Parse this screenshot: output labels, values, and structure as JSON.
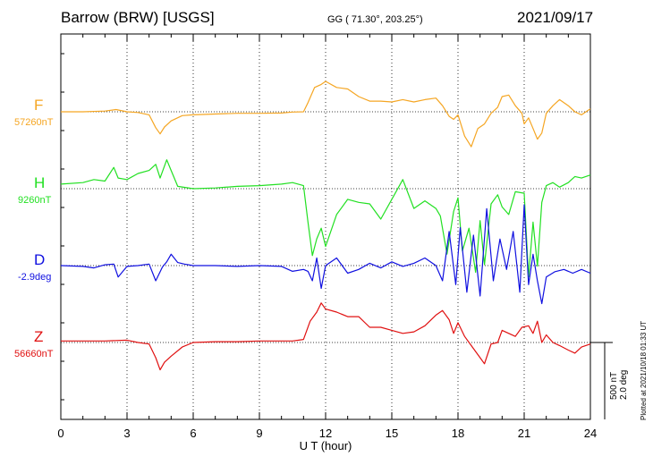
{
  "header": {
    "station": "Barrow (BRW)  [USGS]",
    "coords": "GG ( 71.30°, 203.25°)",
    "date": "2021/09/17"
  },
  "plotted_note": "Plotted at 2021/10/18 01:33 UT",
  "scale_note": {
    "nt": "500 nT",
    "deg": "2.0 deg"
  },
  "colors": {
    "F": "#f5a623",
    "H": "#22e022",
    "D": "#1010e0",
    "Z": "#e01010"
  },
  "chart_data": {
    "type": "line",
    "title": "Barrow (BRW)  [USGS]",
    "xlabel": "U T (hour)",
    "xlim": [
      0,
      24
    ],
    "xticks": [
      0,
      3,
      6,
      9,
      12,
      15,
      18,
      21,
      24
    ],
    "series": [
      {
        "name": "F",
        "baseline_label": "57260nT",
        "color": "#f5a623",
        "unit": "nT",
        "baseline": 57260,
        "x": [
          0,
          1,
          2,
          2.5,
          3,
          3.5,
          4,
          4.3,
          4.5,
          4.7,
          5,
          5.5,
          6,
          7,
          8,
          9,
          10,
          10.5,
          11,
          11.2,
          11.5,
          11.8,
          12,
          12.5,
          13,
          13.5,
          14,
          14.5,
          15,
          15.5,
          16,
          16.5,
          17,
          17.3,
          17.6,
          17.8,
          18,
          18.3,
          18.6,
          18.9,
          19.2,
          19.5,
          19.8,
          20,
          20.3,
          20.6,
          20.9,
          21,
          21.2,
          21.4,
          21.6,
          21.8,
          22,
          22.3,
          22.6,
          23,
          23.3,
          23.6,
          24
        ],
        "values": [
          57260,
          57260,
          57265,
          57275,
          57260,
          57255,
          57240,
          57155,
          57115,
          57160,
          57200,
          57235,
          57240,
          57245,
          57250,
          57250,
          57252,
          57258,
          57260,
          57320,
          57420,
          57440,
          57460,
          57420,
          57410,
          57360,
          57330,
          57330,
          57325,
          57340,
          57325,
          57340,
          57350,
          57300,
          57230,
          57210,
          57240,
          57100,
          57030,
          57150,
          57180,
          57250,
          57290,
          57360,
          57370,
          57300,
          57250,
          57180,
          57220,
          57150,
          57080,
          57120,
          57250,
          57300,
          57340,
          57300,
          57260,
          57240,
          57280
        ]
      },
      {
        "name": "H",
        "baseline_label": "9260nT",
        "color": "#22e022",
        "unit": "nT",
        "baseline": 9260,
        "x": [
          0,
          1,
          1.5,
          2,
          2.4,
          2.6,
          3,
          3.5,
          4,
          4.3,
          4.5,
          4.8,
          5,
          5.3,
          6,
          7,
          8,
          9,
          10,
          10.5,
          11,
          11.2,
          11.4,
          11.6,
          11.8,
          12,
          12.5,
          13,
          13.5,
          14,
          14.5,
          15,
          15.5,
          16,
          16.5,
          17,
          17.2,
          17.5,
          17.8,
          18,
          18.2,
          18.5,
          18.8,
          19,
          19.2,
          19.5,
          19.8,
          20,
          20.3,
          20.6,
          21,
          21.2,
          21.4,
          21.6,
          21.8,
          22,
          22.3,
          22.6,
          23,
          23.3,
          23.6,
          24
        ],
        "values": [
          9290,
          9300,
          9320,
          9310,
          9400,
          9330,
          9320,
          9360,
          9380,
          9420,
          9330,
          9450,
          9380,
          9275,
          9260,
          9265,
          9275,
          9280,
          9290,
          9300,
          9280,
          9040,
          8820,
          8930,
          9000,
          8880,
          9090,
          9190,
          9170,
          9160,
          9060,
          9190,
          9320,
          9130,
          9180,
          9130,
          9080,
          8830,
          9110,
          9200,
          8850,
          9000,
          8710,
          9050,
          8760,
          9160,
          9220,
          9140,
          9090,
          9240,
          9230,
          8680,
          9040,
          8750,
          9170,
          9280,
          9300,
          9270,
          9300,
          9340,
          9330,
          9350
        ]
      },
      {
        "name": "D",
        "baseline_label": "-2.9deg",
        "color": "#1010e0",
        "unit": "deg",
        "baseline": -2.9,
        "x": [
          0,
          1,
          1.5,
          2,
          2.4,
          2.6,
          3,
          3.5,
          4,
          4.3,
          4.6,
          4.8,
          5,
          5.3,
          5.6,
          6,
          7,
          8,
          9,
          10,
          10.5,
          11,
          11.2,
          11.4,
          11.6,
          11.8,
          12,
          12.5,
          13,
          13.5,
          14,
          14.5,
          15,
          15.5,
          16,
          16.5,
          17,
          17.3,
          17.6,
          17.9,
          18.1,
          18.4,
          18.7,
          19,
          19.3,
          19.6,
          19.9,
          20.2,
          20.5,
          20.8,
          21,
          21.2,
          21.4,
          21.6,
          21.8,
          22,
          22.4,
          22.8,
          23.2,
          23.6,
          24
        ],
        "values": [
          -2.9,
          -2.92,
          -2.96,
          -2.88,
          -2.86,
          -3.2,
          -2.92,
          -2.9,
          -2.86,
          -3.3,
          -2.94,
          -2.8,
          -2.6,
          -2.82,
          -2.86,
          -2.9,
          -2.9,
          -2.92,
          -2.9,
          -2.92,
          -3.05,
          -3.0,
          -3.05,
          -3.3,
          -2.7,
          -3.5,
          -2.9,
          -2.7,
          -3.1,
          -3.0,
          -2.84,
          -2.96,
          -2.8,
          -2.92,
          -2.84,
          -2.7,
          -2.9,
          -3.3,
          -2.0,
          -3.4,
          -1.9,
          -3.6,
          -2.1,
          -3.7,
          -1.4,
          -3.3,
          -2.2,
          -3.0,
          -2.0,
          -3.6,
          -1.3,
          -3.4,
          -2.6,
          -3.3,
          -3.9,
          -3.2,
          -3.06,
          -3.0,
          -3.1,
          -3.0,
          -3.1
        ]
      },
      {
        "name": "Z",
        "baseline_label": "56660nT",
        "color": "#e01010",
        "unit": "nT",
        "baseline": 56660,
        "x": [
          0,
          1,
          2,
          3,
          3.5,
          4,
          4.3,
          4.5,
          4.7,
          5,
          5.5,
          6,
          7,
          8,
          9,
          10,
          10.5,
          11,
          11.3,
          11.6,
          11.8,
          12,
          12.5,
          13,
          13.5,
          14,
          14.5,
          15,
          15.5,
          16,
          16.5,
          17,
          17.3,
          17.6,
          17.8,
          18,
          18.3,
          18.6,
          19,
          19.2,
          19.5,
          19.8,
          20,
          20.3,
          20.6,
          20.9,
          21.2,
          21.4,
          21.6,
          21.8,
          22,
          22.3,
          22.6,
          23,
          23.3,
          23.6,
          24
        ],
        "values": [
          56670,
          56670,
          56670,
          56675,
          56660,
          56650,
          56560,
          56480,
          56530,
          56570,
          56630,
          56660,
          56665,
          56665,
          56670,
          56670,
          56670,
          56680,
          56800,
          56860,
          56920,
          56880,
          56860,
          56830,
          56830,
          56760,
          56760,
          56740,
          56720,
          56730,
          56770,
          56840,
          56870,
          56810,
          56720,
          56790,
          56700,
          56640,
          56560,
          56520,
          56650,
          56660,
          56740,
          56720,
          56700,
          56760,
          56770,
          56720,
          56800,
          56660,
          56710,
          56660,
          56640,
          56610,
          56590,
          56630,
          56650
        ]
      }
    ]
  }
}
